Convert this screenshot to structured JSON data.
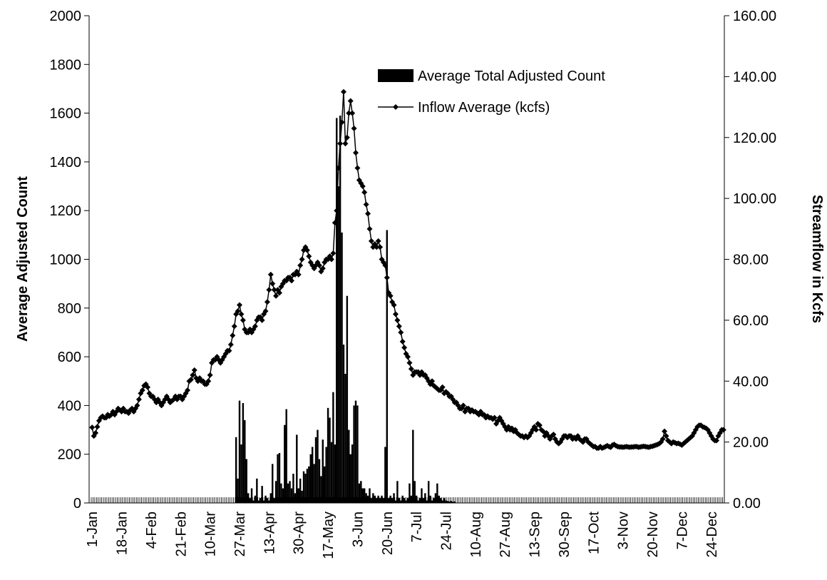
{
  "chart_data": {
    "type": "bar-line",
    "ylabel": "Average Adjusted Count",
    "y2label": "Streamflow in Kcfs",
    "ylim": [
      0,
      2000
    ],
    "yticks": [
      0,
      200,
      400,
      600,
      800,
      1000,
      1200,
      1400,
      1600,
      1800,
      2000
    ],
    "y2lim": [
      0,
      160
    ],
    "y2ticks": [
      {
        "value": 0,
        "label": "0.00"
      },
      {
        "value": 20,
        "label": "20.00"
      },
      {
        "value": 40,
        "label": "40.00"
      },
      {
        "value": 60,
        "label": "60.00"
      },
      {
        "value": 80,
        "label": "80.00"
      },
      {
        "value": 100,
        "label": "100.00"
      },
      {
        "value": 120,
        "label": "120.00"
      },
      {
        "value": 140,
        "label": "140.00"
      },
      {
        "value": 160,
        "label": "160.00"
      }
    ],
    "categories": [
      "1-Jan",
      null,
      null,
      null,
      null,
      null,
      null,
      null,
      null,
      null,
      null,
      null,
      null,
      null,
      null,
      null,
      null,
      "18-Jan",
      null,
      null,
      null,
      null,
      null,
      null,
      null,
      null,
      null,
      null,
      null,
      null,
      null,
      null,
      null,
      null,
      "4-Feb",
      null,
      null,
      null,
      null,
      null,
      null,
      null,
      null,
      null,
      null,
      null,
      null,
      null,
      null,
      null,
      null,
      "21-Feb",
      null,
      null,
      null,
      null,
      null,
      null,
      null,
      null,
      null,
      null,
      null,
      null,
      null,
      null,
      null,
      null,
      "10-Mar",
      null,
      null,
      null,
      null,
      null,
      null,
      null,
      null,
      null,
      null,
      null,
      null,
      null,
      null,
      null,
      null,
      "27-Mar",
      null,
      null,
      null,
      null,
      null,
      null,
      null,
      null,
      null,
      null,
      null,
      null,
      null,
      null,
      null,
      null,
      "13-Apr",
      null,
      null,
      null,
      null,
      null,
      null,
      null,
      null,
      null,
      null,
      null,
      null,
      null,
      null,
      null,
      null,
      "30-Apr",
      null,
      null,
      null,
      null,
      null,
      null,
      null,
      null,
      null,
      null,
      null,
      null,
      null,
      null,
      null,
      null,
      "17-May",
      null,
      null,
      null,
      null,
      null,
      null,
      null,
      null,
      null,
      null,
      null,
      null,
      null,
      null,
      null,
      null,
      "3-Jun",
      null,
      null,
      null,
      null,
      null,
      null,
      null,
      null,
      null,
      null,
      null,
      null,
      null,
      null,
      null,
      null,
      "20-Jun",
      null,
      null,
      null,
      null,
      null,
      null,
      null,
      null,
      null,
      null,
      null,
      null,
      null,
      null,
      null,
      null,
      "7-Jul",
      null,
      null,
      null,
      null,
      null,
      null,
      null,
      null,
      null,
      null,
      null,
      null,
      null,
      null,
      null,
      null,
      "24-Jul",
      null,
      null,
      null,
      null,
      null,
      null,
      null,
      null,
      null,
      null,
      null,
      null,
      null,
      null,
      null,
      null,
      "10-Aug",
      null,
      null,
      null,
      null,
      null,
      null,
      null,
      null,
      null,
      null,
      null,
      null,
      null,
      null,
      null,
      null,
      "27-Aug",
      null,
      null,
      null,
      null,
      null,
      null,
      null,
      null,
      null,
      null,
      null,
      null,
      null,
      null,
      null,
      null,
      "13-Sep",
      null,
      null,
      null,
      null,
      null,
      null,
      null,
      null,
      null,
      null,
      null,
      null,
      null,
      null,
      null,
      null,
      "30-Sep",
      null,
      null,
      null,
      null,
      null,
      null,
      null,
      null,
      null,
      null,
      null,
      null,
      null,
      null,
      null,
      null,
      "17-Oct",
      null,
      null,
      null,
      null,
      null,
      null,
      null,
      null,
      null,
      null,
      null,
      null,
      null,
      null,
      null,
      null,
      "3-Nov",
      null,
      null,
      null,
      null,
      null,
      null,
      null,
      null,
      null,
      null,
      null,
      null,
      null,
      null,
      null,
      null,
      "20-Nov",
      null,
      null,
      null,
      null,
      null,
      null,
      null,
      null,
      null,
      null,
      null,
      null,
      null,
      null,
      null,
      null,
      "7-Dec",
      null,
      null,
      null,
      null,
      null,
      null,
      null,
      null,
      null,
      null,
      null,
      null,
      null,
      null,
      null,
      null,
      "24-Dec",
      null,
      null,
      null,
      null,
      null,
      null,
      null
    ],
    "series": [
      {
        "name": "Average Total Adjusted Count",
        "color": "#000000",
        "values": [
          0,
          0,
          0,
          0,
          0,
          0,
          0,
          0,
          0,
          0,
          0,
          0,
          0,
          0,
          0,
          0,
          0,
          0,
          0,
          0,
          0,
          0,
          0,
          0,
          0,
          0,
          0,
          0,
          0,
          0,
          0,
          0,
          0,
          0,
          0,
          0,
          0,
          0,
          0,
          0,
          0,
          0,
          0,
          0,
          0,
          0,
          0,
          0,
          0,
          0,
          0,
          0,
          0,
          0,
          0,
          0,
          0,
          0,
          0,
          0,
          0,
          0,
          0,
          0,
          0,
          0,
          0,
          0,
          0,
          0,
          0,
          0,
          0,
          0,
          0,
          0,
          0,
          0,
          0,
          0,
          0,
          0,
          0,
          270,
          100,
          420,
          240,
          410,
          340,
          180,
          40,
          20,
          60,
          10,
          30,
          100,
          10,
          20,
          70,
          10,
          30,
          20,
          10,
          40,
          160,
          20,
          90,
          200,
          205,
          80,
          60,
          320,
          385,
          80,
          90,
          60,
          120,
          40,
          280,
          60,
          100,
          50,
          130,
          120,
          140,
          150,
          200,
          230,
          160,
          270,
          300,
          180,
          110,
          260,
          150,
          230,
          390,
          350,
          250,
          455,
          240,
          1580,
          1300,
          1590,
          1110,
          650,
          530,
          850,
          300,
          200,
          240,
          400,
          420,
          400,
          80,
          90,
          60,
          60,
          40,
          30,
          60,
          20,
          40,
          30,
          20,
          30,
          20,
          30,
          20,
          230,
          1120,
          20,
          30,
          20,
          40,
          10,
          90,
          20,
          10,
          30,
          20,
          10,
          20,
          80,
          30,
          300,
          90,
          30,
          10,
          20,
          60,
          20,
          40,
          10,
          90,
          30,
          10,
          20,
          40,
          80,
          30,
          20,
          10,
          20,
          10,
          8,
          6,
          8,
          5,
          6,
          0,
          0,
          0,
          0,
          0,
          0,
          0,
          0,
          0,
          0,
          0,
          0,
          0,
          0,
          0,
          0,
          0,
          0,
          0,
          0,
          0,
          0,
          0,
          0,
          0,
          0,
          0,
          0,
          0,
          0,
          0,
          0,
          0,
          0,
          0,
          0,
          0,
          0,
          0,
          0,
          0,
          0,
          0,
          0,
          0,
          0,
          0,
          0,
          0,
          0,
          0,
          0,
          0,
          0,
          0,
          0,
          0,
          0,
          0,
          0,
          0,
          0,
          0,
          0,
          0,
          0,
          0,
          0,
          0,
          0,
          0,
          0,
          0,
          0,
          0,
          0,
          0,
          0,
          0,
          0,
          0,
          0,
          0,
          0,
          0,
          0,
          0,
          0,
          0,
          0,
          0,
          0,
          0,
          0,
          0,
          0,
          0,
          0,
          0,
          0,
          0,
          0,
          0,
          0,
          0,
          0,
          0,
          0,
          0,
          0,
          0,
          0,
          0,
          0,
          0,
          0,
          0,
          0,
          0,
          0,
          0,
          0,
          0,
          0,
          0,
          0,
          0,
          0,
          0,
          0,
          0,
          0,
          0,
          0,
          0,
          0,
          0,
          0,
          0,
          0,
          0,
          0,
          0,
          0,
          0,
          0,
          0,
          0,
          0,
          0,
          0,
          0,
          0,
          0,
          0
        ]
      },
      {
        "name": "Inflow Average (kcfs)",
        "color": "#000000",
        "axis": "y2",
        "values": [
          24.8,
          22,
          23,
          25,
          27,
          28,
          28.5,
          28,
          28,
          29,
          28.5,
          29,
          30,
          29,
          30,
          31,
          30.5,
          30,
          31,
          30,
          30,
          29.5,
          30.5,
          31,
          30,
          31,
          32,
          34,
          36,
          37,
          38.5,
          39,
          38,
          36,
          35,
          35,
          34,
          33,
          34,
          33,
          32,
          33,
          34,
          35,
          34,
          33,
          33.5,
          34,
          35,
          34,
          35,
          35,
          34,
          35,
          36,
          37,
          40,
          40.5,
          42,
          43.6,
          41,
          40,
          41,
          40,
          40,
          39,
          39,
          40,
          42,
          46,
          47,
          47,
          48,
          47,
          46,
          47,
          48,
          49,
          50,
          50,
          52,
          55,
          58,
          62,
          63,
          65,
          62,
          60,
          57,
          56,
          56,
          57,
          56,
          57,
          58,
          60,
          61,
          61,
          60,
          62,
          63,
          66,
          70,
          75,
          72,
          70,
          68,
          70,
          69,
          71,
          72,
          73,
          73,
          74,
          74,
          73,
          75,
          75,
          76,
          75,
          78,
          80,
          83,
          84,
          83,
          81,
          79,
          78,
          77,
          78,
          79,
          78,
          76,
          77,
          79,
          80,
          80,
          81,
          80,
          82,
          92,
          96,
          110,
          118,
          125,
          135,
          118,
          120,
          128,
          132,
          128,
          123,
          115,
          110,
          106,
          105,
          104,
          102,
          98,
          95,
          90,
          86,
          84,
          85,
          84,
          86,
          84,
          80,
          79,
          78,
          74,
          69,
          68,
          66,
          65,
          62,
          60,
          58,
          56,
          53,
          51,
          49,
          48,
          46,
          44,
          42,
          43,
          43,
          43,
          42,
          43,
          42,
          42,
          41,
          40,
          39,
          40,
          38.5,
          38,
          37.5,
          37,
          37,
          38,
          36,
          36.5,
          36,
          35,
          35,
          34,
          33,
          33,
          32,
          31,
          31,
          32,
          30,
          31,
          31,
          30,
          30.5,
          30,
          30,
          29.5,
          29,
          30,
          29,
          29,
          28,
          28.5,
          28,
          28,
          27.5,
          28,
          26,
          27,
          28,
          27,
          26,
          25,
          24,
          25,
          24,
          24.5,
          23.5,
          24,
          23,
          22.5,
          22,
          22,
          21.5,
          22,
          21.5,
          22,
          23,
          24,
          25,
          24,
          26,
          25.5,
          24,
          23.5,
          22,
          23,
          22,
          21,
          22,
          22.5,
          21,
          20,
          19.5,
          20,
          21,
          22,
          22,
          21.5,
          22,
          22,
          21,
          21.5,
          21,
          22,
          21,
          20.5,
          20,
          21,
          21,
          20,
          19.5,
          19,
          18.5,
          18.5,
          18,
          18,
          18.5,
          18,
          18.2,
          18.5,
          18.8,
          18.5,
          18.3,
          19,
          19.2,
          18.8,
          18.5,
          18.4,
          18.4,
          18.3,
          18.4,
          18.5,
          18.4,
          18.3,
          18.4,
          18.4,
          18.5,
          18.5,
          18.3,
          18.4,
          18.5,
          18.6,
          18.5,
          18.4,
          18.3,
          18.5,
          18.6,
          18.8,
          19,
          19.2,
          19.5,
          20,
          21,
          23.5,
          22,
          20.5,
          20,
          19.5,
          20,
          19.8,
          19.5,
          19.6,
          19.3,
          19,
          19.5,
          20,
          20.5,
          21,
          21.5,
          22,
          23,
          24,
          25,
          25.5,
          25.5,
          25,
          24.8,
          24.5,
          24,
          23,
          22,
          21,
          20.5,
          20.5,
          22,
          23,
          24,
          24
        ]
      }
    ]
  }
}
